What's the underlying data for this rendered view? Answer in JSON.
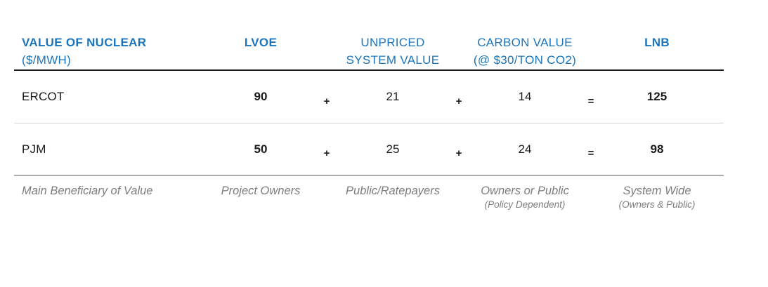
{
  "palette": {
    "header_blue": "#1B75BC",
    "text_dark": "#1A1A1A",
    "muted_gray": "#7D7D7D",
    "rule_dark": "#1A1A1A",
    "rule_light": "#D8D8D8",
    "rule_medium": "#ABABAB"
  },
  "table": {
    "header": {
      "title_line1": "VALUE OF NUCLEAR",
      "title_line2": "($/MWH)",
      "col_lvoe": "LVOE",
      "col_unpriced_line1": "UNPRICED",
      "col_unpriced_line2": "SYSTEM VALUE",
      "col_carbon_line1": "CARBON VALUE",
      "col_carbon_line2": "(@ $30/TON CO2)",
      "col_lnb": "LNB"
    },
    "operators": {
      "plus": "+",
      "equals": "="
    },
    "rows": [
      {
        "label": "ERCOT",
        "lvoe": "90",
        "unpriced": "21",
        "carbon": "14",
        "lnb": "125"
      },
      {
        "label": "PJM",
        "lvoe": "50",
        "unpriced": "25",
        "carbon": "24",
        "lnb": "98"
      }
    ],
    "beneficiary": {
      "label": "Main Beneficiary of Value",
      "lvoe_main": "Project Owners",
      "unpriced_main": "Public/Ratepayers",
      "carbon_main": "Owners or Public",
      "carbon_sub": "(Policy Dependent)",
      "lnb_main": "System Wide",
      "lnb_sub": "(Owners & Public)"
    }
  },
  "chart_data": {
    "type": "table",
    "title": "VALUE OF NUCLEAR ($/MWH)",
    "columns": [
      "VALUE OF NUCLEAR ($/MWH)",
      "LVOE",
      "UNPRICED SYSTEM VALUE",
      "CARBON VALUE (@ $30/TON CO2)",
      "LNB"
    ],
    "rows": [
      {
        "region": "ERCOT",
        "lvoe": 90,
        "unpriced_system_value": 21,
        "carbon_value": 14,
        "lnb": 125
      },
      {
        "region": "PJM",
        "lvoe": 50,
        "unpriced_system_value": 25,
        "carbon_value": 24,
        "lnb": 98
      }
    ],
    "relation": "LVOE + UNPRICED SYSTEM VALUE + CARBON VALUE = LNB",
    "footer_row": {
      "label": "Main Beneficiary of Value",
      "values": [
        "Project Owners",
        "Public/Ratepayers",
        "Owners or Public (Policy Dependent)",
        "System Wide (Owners & Public)"
      ]
    },
    "layout": {
      "grid": "off",
      "header_color": "#1B75BC"
    }
  }
}
